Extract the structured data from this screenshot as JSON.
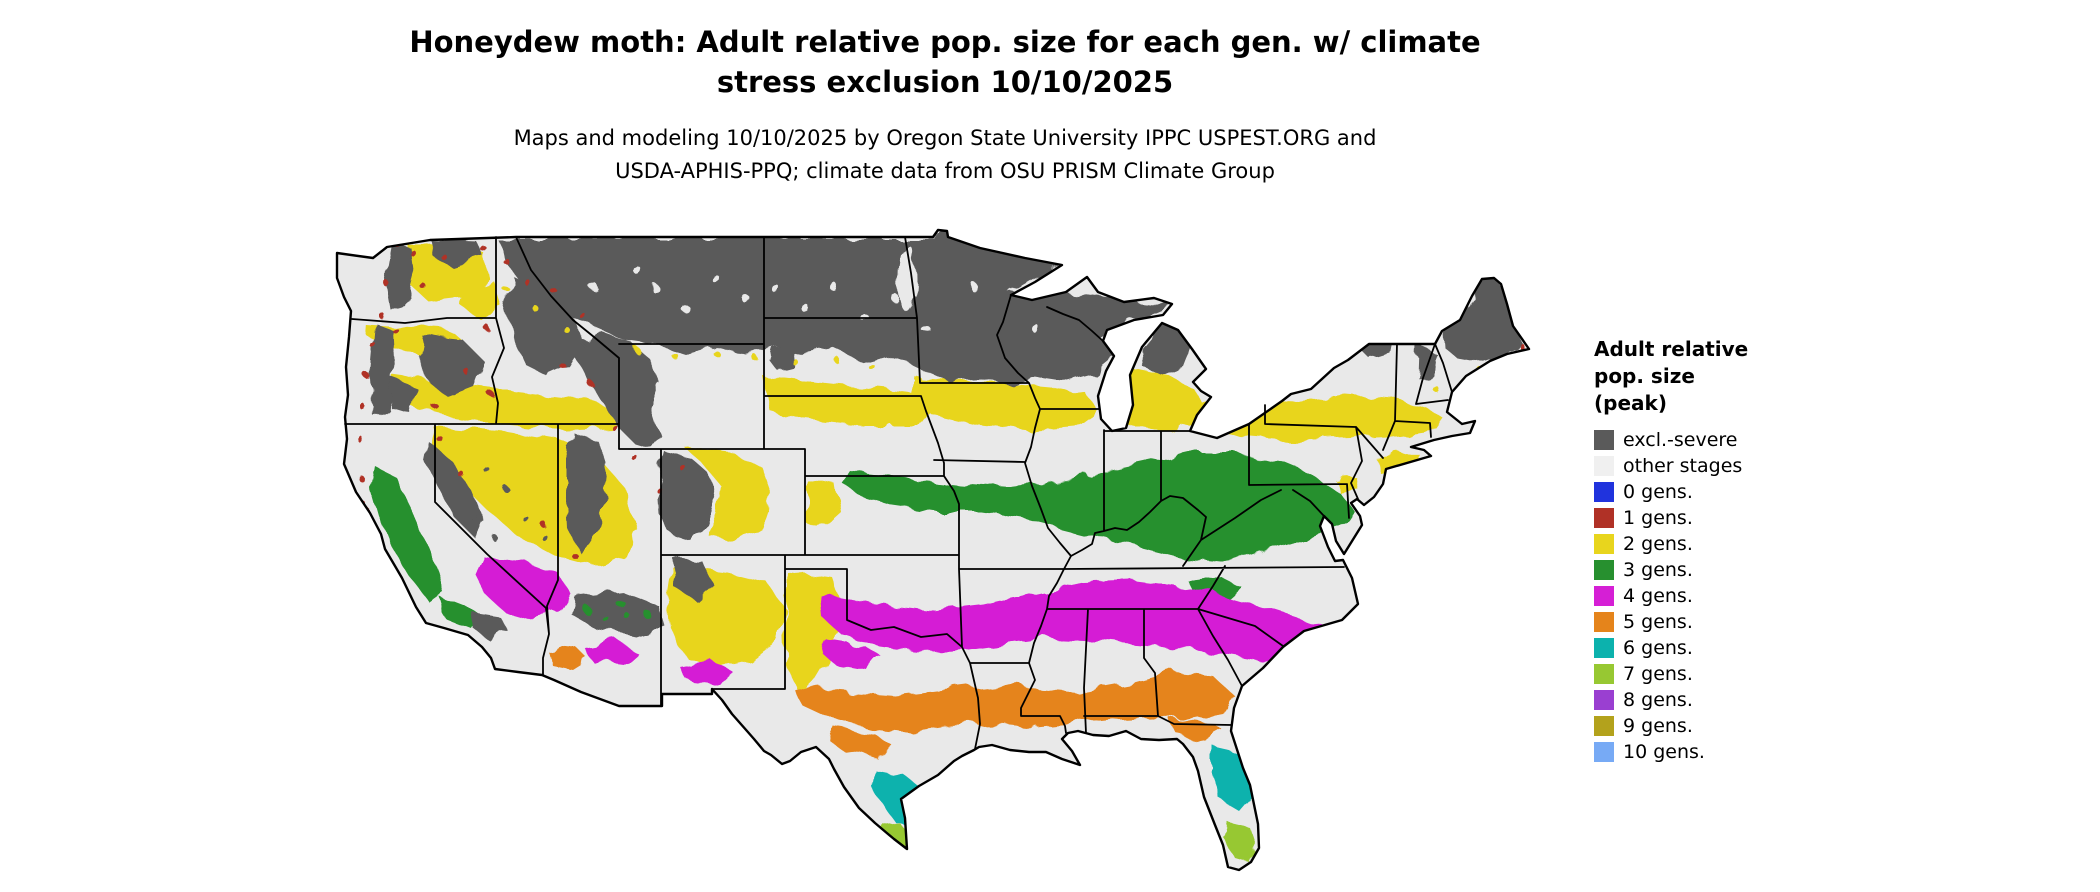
{
  "title": {
    "line1": "Honeydew moth: Adult relative pop. size for each gen. w/ climate",
    "line2": "stress exclusion 10/10/2025"
  },
  "subtitle": {
    "line1": "Maps and modeling 10/10/2025 by Oregon State University IPPC USPEST.ORG and",
    "line2": "USDA-APHIS-PPQ; climate data from OSU PRISM Climate Group"
  },
  "legend": {
    "title_lines": [
      "Adult relative",
      "pop. size",
      "(peak)"
    ],
    "items": [
      {
        "label": "excl.-severe",
        "color": "#5a5a5a"
      },
      {
        "label": "other stages",
        "color": "#f0f0f0"
      },
      {
        "label": "0 gens.",
        "color": "#2033dd"
      },
      {
        "label": "1 gens.",
        "color": "#b03126"
      },
      {
        "label": "2 gens.",
        "color": "#e8d51d"
      },
      {
        "label": "3 gens.",
        "color": "#27902f"
      },
      {
        "label": "4 gens.",
        "color": "#d51fd5"
      },
      {
        "label": "5 gens.",
        "color": "#e5841b"
      },
      {
        "label": "6 gens.",
        "color": "#0cb2ad"
      },
      {
        "label": "7 gens.",
        "color": "#97c832"
      },
      {
        "label": "8 gens.",
        "color": "#9a3fd1"
      },
      {
        "label": "9 gens.",
        "color": "#b3a21c"
      },
      {
        "label": "10 gens.",
        "color": "#77aaf5"
      }
    ]
  },
  "map": {
    "description": "Contiguous United States choropleth of honeydew moth adult relative population size generations",
    "colors": {
      "excl": "#5a5a5a",
      "other": "#e9e9e9",
      "gen0": "#2033dd",
      "gen1": "#b03126",
      "gen2": "#e8d51d",
      "gen3": "#27902f",
      "gen4": "#d51fd5",
      "gen5": "#e5841b",
      "gen6": "#0cb2ad",
      "gen7": "#97c832",
      "gen8": "#9a3fd1",
      "gen9": "#b3a21c",
      "gen10": "#77aaf5",
      "outline": "#000000"
    }
  }
}
